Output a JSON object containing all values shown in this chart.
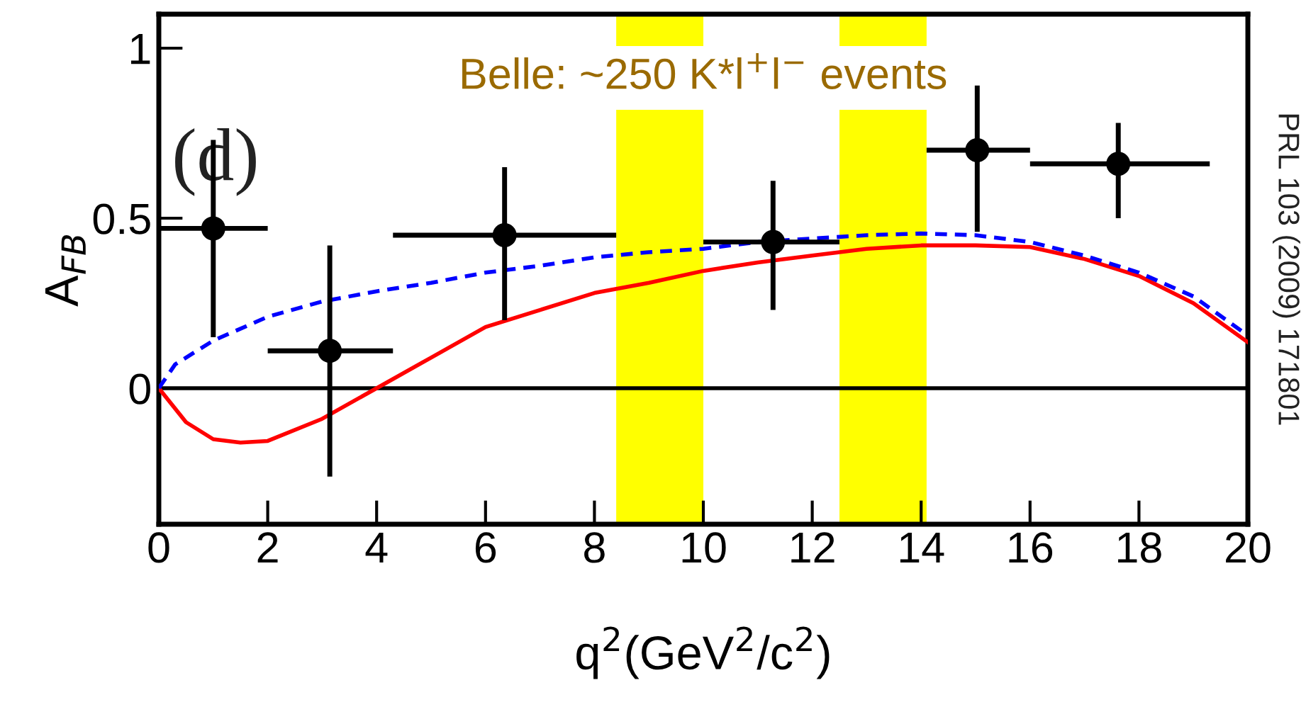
{
  "chart_data": {
    "type": "scatter",
    "xlabel": "q$^{2}$(GeV$^{2}$/c$^{2}$)",
    "ylabel": "A$_{FB}$",
    "xlim": [
      0,
      20
    ],
    "ylim": [
      -0.4,
      1.1
    ],
    "xticks": [
      0,
      2,
      4,
      6,
      8,
      10,
      12,
      14,
      16,
      18,
      20
    ],
    "yticks": [
      0,
      0.5,
      1
    ],
    "grid": false,
    "legend": false,
    "series": [
      {
        "color": "#000000",
        "marker": "circle",
        "x": [
          1.0,
          3.14,
          6.35,
          11.28,
          15.03,
          17.62
        ],
        "values": [
          0.47,
          0.11,
          0.45,
          0.43,
          0.7,
          0.66
        ],
        "errors": [
          [
            0.15,
            0.73
          ],
          [
            -0.26,
            0.42
          ],
          [
            0.2,
            0.65
          ],
          [
            0.23,
            0.61
          ],
          [
            0.46,
            0.89
          ],
          [
            0.5,
            0.78
          ]
        ],
        "xerrors": [
          [
            0,
            2
          ],
          [
            2,
            4.3
          ],
          [
            4.3,
            8.4
          ],
          [
            10,
            12.5
          ],
          [
            14.1,
            16
          ],
          [
            16,
            19.3
          ]
        ]
      },
      {
        "type": "line",
        "color": "#ff0000",
        "line_style": "solid",
        "marker": "none",
        "x": [
          0,
          0.5,
          1,
          1.5,
          2,
          3,
          4,
          5,
          6,
          7,
          8,
          9,
          10,
          11,
          12,
          13,
          14,
          15,
          16,
          17,
          18,
          19,
          20
        ],
        "values": [
          0,
          -0.1,
          -0.15,
          -0.16,
          -0.155,
          -0.09,
          0.0,
          0.09,
          0.18,
          0.23,
          0.28,
          0.31,
          0.345,
          0.37,
          0.39,
          0.41,
          0.42,
          0.42,
          0.415,
          0.38,
          0.33,
          0.25,
          0.135
        ]
      },
      {
        "type": "line",
        "color": "#0000ff",
        "line_style": "dashed",
        "marker": "none",
        "x": [
          0,
          0.3,
          1,
          2,
          3,
          4,
          5,
          6,
          7,
          8,
          9,
          10,
          11,
          12,
          13,
          14,
          15,
          16,
          17,
          18,
          19,
          20
        ],
        "values": [
          0,
          0.07,
          0.14,
          0.21,
          0.255,
          0.285,
          0.31,
          0.34,
          0.36,
          0.385,
          0.4,
          0.41,
          0.43,
          0.44,
          0.45,
          0.455,
          0.45,
          0.43,
          0.39,
          0.34,
          0.27,
          0.155
        ]
      }
    ],
    "bands": [
      {
        "axis": "x",
        "from": 8.4,
        "to": 10.0,
        "color": "#ffff00"
      },
      {
        "axis": "x",
        "from": 12.5,
        "to": 14.1,
        "color": "#ffff00"
      }
    ],
    "ref_lines": [
      {
        "axis": "y",
        "value": 0,
        "color": "#000000",
        "line_style": "solid"
      }
    ],
    "annotations": [
      "Belle: ~250 K*l$^{+}$l$^{−}$ events",
      "(d)",
      "PRL 103 (2009) 171801"
    ]
  }
}
